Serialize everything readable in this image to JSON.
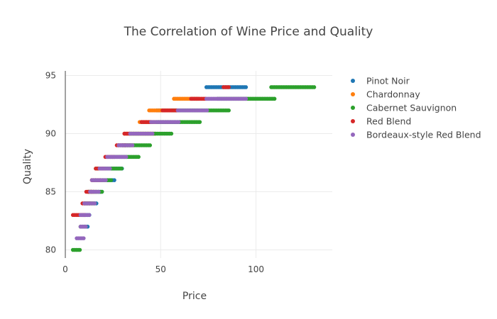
{
  "chart_data": {
    "type": "scatter",
    "title": "The Correlation of Wine Price and Quality",
    "xlabel": "Price",
    "ylabel": "Quality",
    "xlim": [
      0,
      140
    ],
    "ylim": [
      79.3,
      95.4
    ],
    "xticks": [
      0,
      50,
      100
    ],
    "yticks": [
      80,
      85,
      90,
      95
    ],
    "grid": true,
    "legend_position": "right",
    "series": [
      {
        "name": "Pinot Noir",
        "color": "#1f77b4",
        "segments": [
          {
            "y": 82,
            "x": [
              9,
              12
            ]
          },
          {
            "y": 83,
            "x": [
              9,
              13
            ]
          },
          {
            "y": 84,
            "x": [
              10,
              17
            ]
          },
          {
            "y": 85,
            "x": [
              12,
              20
            ]
          },
          {
            "y": 86,
            "x": [
              14,
              26
            ]
          },
          {
            "y": 87,
            "x": [
              18,
              30
            ]
          },
          {
            "y": 89,
            "x": [
              28,
              35
            ]
          },
          {
            "y": 91,
            "x": [
              40,
              60
            ]
          },
          {
            "y": 92,
            "x": [
              48,
              70
            ]
          },
          {
            "y": 94,
            "x": [
              74,
              95
            ]
          }
        ]
      },
      {
        "name": "Chardonnay",
        "color": "#ff7f0e",
        "segments": [
          {
            "y": 84,
            "x": [
              10,
              15
            ]
          },
          {
            "y": 85,
            "x": [
              12,
              17
            ]
          },
          {
            "y": 86,
            "x": [
              14,
              22
            ]
          },
          {
            "y": 89,
            "x": [
              31,
              36
            ]
          },
          {
            "y": 90,
            "x": [
              31,
              48
            ]
          },
          {
            "y": 91,
            "x": [
              39,
              55
            ]
          },
          {
            "y": 92,
            "x": [
              44,
              58
            ]
          },
          {
            "y": 93,
            "x": [
              57,
              70
            ]
          }
        ]
      },
      {
        "name": "Cabernet Sauvignon",
        "color": "#2ca02c",
        "segments": [
          {
            "y": 80,
            "x": [
              4,
              8
            ]
          },
          {
            "y": 82,
            "x": [
              8,
              11
            ]
          },
          {
            "y": 84,
            "x": [
              10,
              16
            ]
          },
          {
            "y": 85,
            "x": [
              12,
              20
            ]
          },
          {
            "y": 86,
            "x": [
              15,
              24
            ]
          },
          {
            "y": 87,
            "x": [
              16,
              30
            ]
          },
          {
            "y": 88,
            "x": [
              24,
              39
            ]
          },
          {
            "y": 89,
            "x": [
              30,
              45
            ]
          },
          {
            "y": 90,
            "x": [
              34,
              56
            ]
          },
          {
            "y": 91,
            "x": [
              48,
              71
            ]
          },
          {
            "y": 92,
            "x": [
              56,
              86
            ]
          },
          {
            "y": 93,
            "x": [
              80,
              110
            ]
          },
          {
            "y": 94,
            "x": [
              108,
              131
            ]
          }
        ]
      },
      {
        "name": "Red Blend",
        "color": "#d62728",
        "segments": [
          {
            "y": 83,
            "x": [
              4,
              11
            ]
          },
          {
            "y": 84,
            "x": [
              9,
              13
            ]
          },
          {
            "y": 85,
            "x": [
              11,
              15
            ]
          },
          {
            "y": 86,
            "x": [
              14,
              19
            ]
          },
          {
            "y": 87,
            "x": [
              16,
              21
            ]
          },
          {
            "y": 88,
            "x": [
              21,
              26
            ]
          },
          {
            "y": 89,
            "x": [
              27,
              32
            ]
          },
          {
            "y": 90,
            "x": [
              31,
              34
            ]
          },
          {
            "y": 91,
            "x": [
              40,
              46
            ]
          },
          {
            "y": 92,
            "x": [
              51,
              59
            ]
          },
          {
            "y": 93,
            "x": [
              66,
              74
            ]
          },
          {
            "y": 94,
            "x": [
              83,
              86
            ]
          }
        ]
      },
      {
        "name": "Bordeaux-style Red Blend",
        "color": "#9467bd",
        "segments": [
          {
            "y": 81,
            "x": [
              6,
              10
            ]
          },
          {
            "y": 82,
            "x": [
              8,
              11
            ]
          },
          {
            "y": 83,
            "x": [
              8,
              13
            ]
          },
          {
            "y": 84,
            "x": [
              10,
              16
            ]
          },
          {
            "y": 85,
            "x": [
              13,
              18
            ]
          },
          {
            "y": 86,
            "x": [
              14,
              22
            ]
          },
          {
            "y": 87,
            "x": [
              18,
              24
            ]
          },
          {
            "y": 88,
            "x": [
              22,
              32
            ]
          },
          {
            "y": 89,
            "x": [
              28,
              36
            ]
          },
          {
            "y": 90,
            "x": [
              34,
              46
            ]
          },
          {
            "y": 91,
            "x": [
              45,
              60
            ]
          },
          {
            "y": 92,
            "x": [
              59,
              75
            ]
          },
          {
            "y": 93,
            "x": [
              74,
              95
            ]
          }
        ]
      }
    ]
  }
}
